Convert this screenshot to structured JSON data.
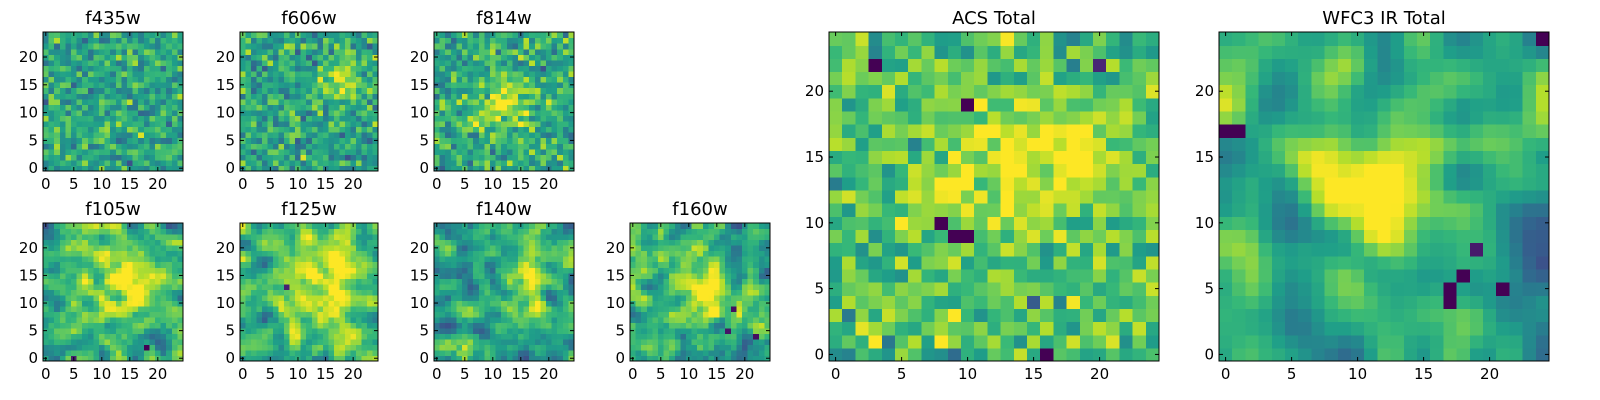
{
  "chart_data": [
    {
      "type": "heatmap",
      "title": "f435w",
      "colormap": "viridis",
      "grid_size": 25,
      "xlim": [
        -0.5,
        24.5
      ],
      "ylim": [
        -0.5,
        24.5
      ],
      "xticks": [
        0,
        5,
        10,
        15,
        20
      ],
      "yticks": [
        0,
        5,
        10,
        15,
        20
      ],
      "seed": 11,
      "smooth": 0,
      "blobs": [],
      "dark_spots": [],
      "bias": 0.0
    },
    {
      "type": "heatmap",
      "title": "f606w",
      "colormap": "viridis",
      "grid_size": 25,
      "xlim": [
        -0.5,
        24.5
      ],
      "ylim": [
        -0.5,
        24.5
      ],
      "xticks": [
        0,
        5,
        10,
        15,
        20
      ],
      "yticks": [
        0,
        5,
        10,
        15,
        20
      ],
      "seed": 23,
      "smooth": 0,
      "blobs": [
        {
          "x": 18,
          "y": 16,
          "r": 2.5,
          "amp": 0.35
        }
      ],
      "dark_spots": [],
      "bias": 0.0
    },
    {
      "type": "heatmap",
      "title": "f814w",
      "colormap": "viridis",
      "grid_size": 25,
      "xlim": [
        -0.5,
        24.5
      ],
      "ylim": [
        -0.5,
        24.5
      ],
      "xticks": [
        0,
        5,
        10,
        15,
        20
      ],
      "yticks": [
        0,
        5,
        10,
        15,
        20
      ],
      "seed": 37,
      "smooth": 0,
      "blobs": [
        {
          "x": 12,
          "y": 12,
          "r": 3.5,
          "amp": 0.3
        }
      ],
      "dark_spots": [],
      "bias": 0.0
    },
    {
      "type": "heatmap",
      "title": "f105w",
      "colormap": "viridis",
      "grid_size": 25,
      "xlim": [
        -0.5,
        24.5
      ],
      "ylim": [
        -0.5,
        24.5
      ],
      "xticks": [
        0,
        5,
        10,
        15,
        20
      ],
      "yticks": [
        0,
        5,
        10,
        15,
        20
      ],
      "seed": 41,
      "smooth": 1,
      "blobs": [
        {
          "x": 13,
          "y": 13,
          "r": 4,
          "amp": 0.3
        },
        {
          "x": 19,
          "y": 15,
          "r": 2.5,
          "amp": 0.3
        }
      ],
      "dark_spots": [
        {
          "x": 5,
          "y": 0,
          "amp": 0.8
        },
        {
          "x": 18,
          "y": 2,
          "amp": 0.6
        }
      ],
      "bias": 0.0
    },
    {
      "type": "heatmap",
      "title": "f125w",
      "colormap": "viridis",
      "grid_size": 25,
      "xlim": [
        -0.5,
        24.5
      ],
      "ylim": [
        -0.5,
        24.5
      ],
      "xticks": [
        0,
        5,
        10,
        15,
        20
      ],
      "yticks": [
        0,
        5,
        10,
        15,
        20
      ],
      "seed": 53,
      "smooth": 1,
      "blobs": [
        {
          "x": 14,
          "y": 13,
          "r": 4.5,
          "amp": 0.3
        }
      ],
      "dark_spots": [
        {
          "x": 8,
          "y": 13,
          "amp": 0.6
        }
      ],
      "bias": 0.05
    },
    {
      "type": "heatmap",
      "title": "f140w",
      "colormap": "viridis",
      "grid_size": 25,
      "xlim": [
        -0.5,
        24.5
      ],
      "ylim": [
        -0.5,
        24.5
      ],
      "xticks": [
        0,
        5,
        10,
        15,
        20
      ],
      "yticks": [
        0,
        5,
        10,
        15,
        20
      ],
      "seed": 67,
      "smooth": 1,
      "blobs": [
        {
          "x": 16,
          "y": 15,
          "r": 3.5,
          "amp": 0.3
        }
      ],
      "dark_spots": [],
      "bias": 0.0
    },
    {
      "type": "heatmap",
      "title": "f160w",
      "colormap": "viridis",
      "grid_size": 25,
      "xlim": [
        -0.5,
        24.5
      ],
      "ylim": [
        -0.5,
        24.5
      ],
      "xticks": [
        0,
        5,
        10,
        15,
        20
      ],
      "yticks": [
        0,
        5,
        10,
        15,
        20
      ],
      "seed": 79,
      "smooth": 1,
      "blobs": [
        {
          "x": 13,
          "y": 12,
          "r": 3,
          "amp": 0.35
        }
      ],
      "dark_spots": [
        {
          "x": 18,
          "y": 9,
          "amp": 0.7
        },
        {
          "x": 17,
          "y": 5,
          "amp": 0.6
        },
        {
          "x": 22,
          "y": 4,
          "amp": 0.6
        }
      ],
      "bias": 0.0
    },
    {
      "type": "heatmap",
      "title": "ACS Total",
      "colormap": "viridis",
      "grid_size": 25,
      "xlim": [
        -0.5,
        24.5
      ],
      "ylim": [
        -0.5,
        24.5
      ],
      "xticks": [
        0,
        5,
        10,
        15,
        20
      ],
      "yticks": [
        0,
        5,
        10,
        15,
        20
      ],
      "seed": 97,
      "smooth": 0,
      "blobs": [
        {
          "x": 18,
          "y": 15,
          "r": 3,
          "amp": 0.3
        },
        {
          "x": 11,
          "y": 13,
          "r": 3,
          "amp": 0.2
        }
      ],
      "dark_spots": [
        {
          "x": 3,
          "y": 22,
          "amp": 0.8
        },
        {
          "x": 10,
          "y": 19,
          "amp": 0.8
        },
        {
          "x": 20,
          "y": 22,
          "amp": 0.7
        },
        {
          "x": 8,
          "y": 10,
          "amp": 0.8
        },
        {
          "x": 10,
          "y": 9,
          "amp": 0.9
        },
        {
          "x": 9,
          "y": 9,
          "amp": 0.9
        },
        {
          "x": 16,
          "y": 0,
          "amp": 0.9
        },
        {
          "x": 15,
          "y": 4,
          "amp": 0.7
        }
      ],
      "bias": 0.1
    },
    {
      "type": "heatmap",
      "title": "WFC3 IR Total",
      "colormap": "viridis",
      "grid_size": 25,
      "xlim": [
        -0.5,
        24.5
      ],
      "ylim": [
        -0.5,
        24.5
      ],
      "xticks": [
        0,
        5,
        10,
        15,
        20
      ],
      "yticks": [
        0,
        5,
        10,
        15,
        20
      ],
      "seed": 131,
      "smooth": 2,
      "blobs": [
        {
          "x": 12,
          "y": 13,
          "r": 3.5,
          "amp": 0.45
        }
      ],
      "dark_spots": [
        {
          "x": 0,
          "y": 17,
          "amp": 0.9
        },
        {
          "x": 1,
          "y": 17,
          "amp": 0.9
        },
        {
          "x": 17,
          "y": 5,
          "amp": 0.95
        },
        {
          "x": 18,
          "y": 6,
          "amp": 0.9
        },
        {
          "x": 17,
          "y": 4,
          "amp": 0.95
        },
        {
          "x": 21,
          "y": 5,
          "amp": 0.9
        },
        {
          "x": 19,
          "y": 8,
          "amp": 0.6
        },
        {
          "x": 24,
          "y": 24,
          "amp": 0.5
        }
      ],
      "bias": 0.0
    }
  ]
}
